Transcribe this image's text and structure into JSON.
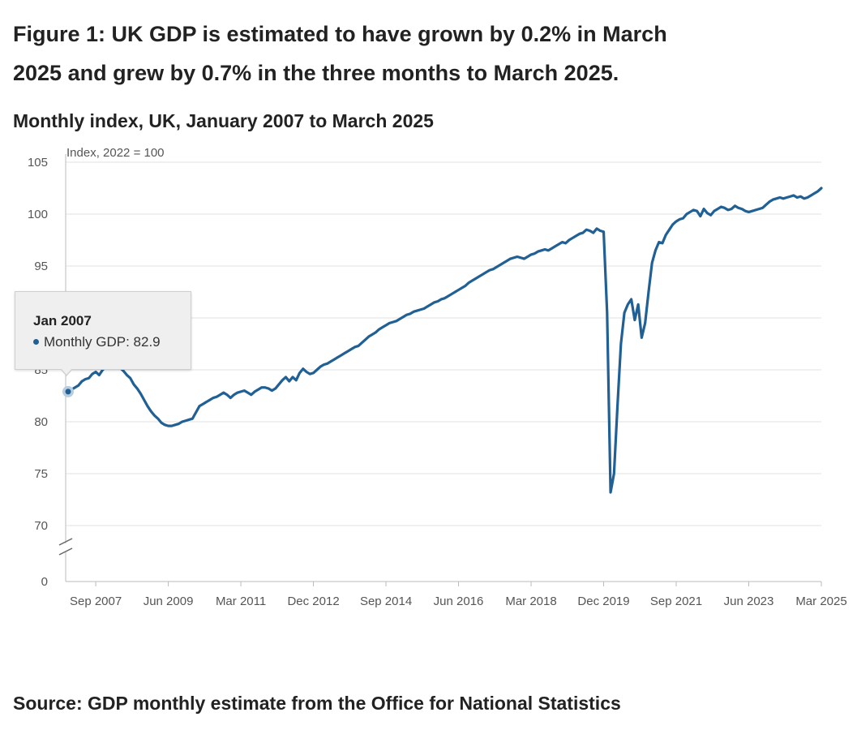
{
  "title": "Figure 1: UK GDP is estimated to have grown by 0.2% in March 2025 and grew by 0.7% in the three months to March 2025.",
  "subtitle": "Monthly index, UK, January 2007 to March 2025",
  "source": "Source: GDP monthly estimate from the Office for National Statistics",
  "colors": {
    "line": "#206095",
    "grid": "#e2e2e2",
    "axis": "#bbbbbb",
    "text": "#222222",
    "tick_text": "#555555"
  },
  "tooltip": {
    "date": "Jan 2007",
    "series": "Monthly GDP",
    "value": "82.9",
    "text": "Monthly GDP: 82.9"
  },
  "chart_data": {
    "type": "line",
    "ylabel": "Index, 2022 = 100",
    "ylim": [
      70,
      105
    ],
    "axis_break": true,
    "y_ticks": [
      105,
      100,
      95,
      90,
      85,
      80,
      75,
      70,
      0
    ],
    "x_ticks": [
      "Sep 2007",
      "Jun 2009",
      "Mar 2011",
      "Dec 2012",
      "Sep 2014",
      "Jun 2016",
      "Mar 2018",
      "Dec 2019",
      "Sep 2021",
      "Jun 2023",
      "Mar 2025"
    ],
    "grid": "horizontal",
    "start": "2007-01",
    "end": "2025-03",
    "series": [
      {
        "name": "Monthly GDP",
        "values": [
          82.9,
          83.1,
          83.3,
          83.5,
          83.9,
          84.1,
          84.2,
          84.6,
          84.8,
          84.5,
          85.0,
          85.3,
          85.5,
          85.3,
          85.6,
          85.2,
          84.9,
          84.5,
          84.2,
          83.6,
          83.2,
          82.7,
          82.1,
          81.5,
          81.0,
          80.6,
          80.3,
          79.9,
          79.7,
          79.6,
          79.6,
          79.7,
          79.8,
          80.0,
          80.1,
          80.2,
          80.3,
          80.9,
          81.5,
          81.7,
          81.9,
          82.1,
          82.3,
          82.4,
          82.6,
          82.8,
          82.6,
          82.3,
          82.6,
          82.8,
          82.9,
          83.0,
          82.8,
          82.6,
          82.9,
          83.1,
          83.3,
          83.3,
          83.2,
          83.0,
          83.2,
          83.6,
          84.0,
          84.3,
          83.9,
          84.3,
          84.0,
          84.7,
          85.1,
          84.8,
          84.6,
          84.7,
          85.0,
          85.3,
          85.5,
          85.6,
          85.8,
          86.0,
          86.2,
          86.4,
          86.6,
          86.8,
          87.0,
          87.2,
          87.3,
          87.6,
          87.9,
          88.2,
          88.4,
          88.6,
          88.9,
          89.1,
          89.3,
          89.5,
          89.6,
          89.7,
          89.9,
          90.1,
          90.3,
          90.4,
          90.6,
          90.7,
          90.8,
          90.9,
          91.1,
          91.3,
          91.5,
          91.6,
          91.8,
          91.9,
          92.1,
          92.3,
          92.5,
          92.7,
          92.9,
          93.1,
          93.4,
          93.6,
          93.8,
          94.0,
          94.2,
          94.4,
          94.6,
          94.7,
          94.9,
          95.1,
          95.3,
          95.5,
          95.7,
          95.8,
          95.9,
          95.8,
          95.7,
          95.9,
          96.1,
          96.2,
          96.4,
          96.5,
          96.6,
          96.5,
          96.7,
          96.9,
          97.1,
          97.3,
          97.2,
          97.5,
          97.7,
          97.9,
          98.1,
          98.2,
          98.5,
          98.4,
          98.2,
          98.6,
          98.4,
          98.3,
          90.5,
          73.2,
          75.0,
          81.5,
          87.5,
          90.5,
          91.3,
          91.8,
          89.8,
          91.3,
          88.1,
          89.5,
          92.5,
          95.3,
          96.5,
          97.3,
          97.2,
          98.0,
          98.5,
          99.0,
          99.3,
          99.5,
          99.6,
          100.0,
          100.2,
          100.4,
          100.3,
          99.8,
          100.5,
          100.1,
          99.9,
          100.3,
          100.5,
          100.7,
          100.6,
          100.4,
          100.5,
          100.8,
          100.6,
          100.5,
          100.3,
          100.2,
          100.3,
          100.4,
          100.5,
          100.6,
          100.9,
          101.2,
          101.4,
          101.5,
          101.6,
          101.5,
          101.6,
          101.7,
          101.8,
          101.6,
          101.7,
          101.5,
          101.6,
          101.8,
          102.0,
          102.2,
          102.5
        ]
      }
    ]
  }
}
